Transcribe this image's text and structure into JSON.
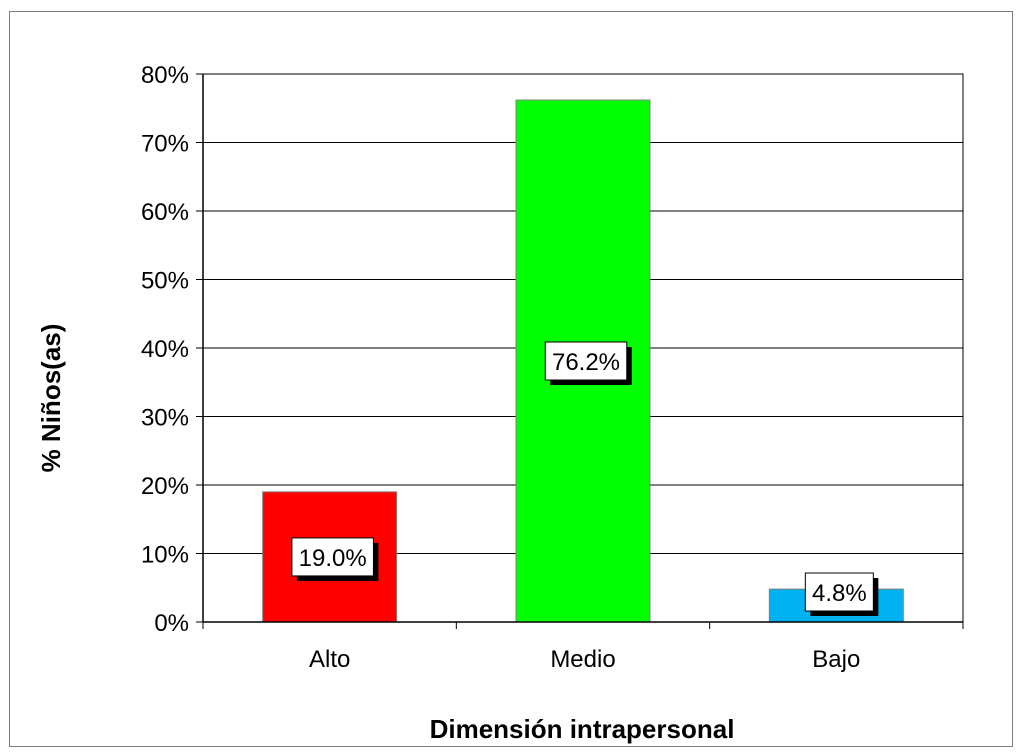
{
  "chart_data": {
    "type": "bar",
    "categories": [
      "Alto",
      "Medio",
      "Bajo"
    ],
    "values": [
      19.0,
      76.2,
      4.8
    ],
    "data_labels": [
      "19.0%",
      "76.2%",
      "4.8%"
    ],
    "bar_colors": [
      "#ff0000",
      "#00ff00",
      "#00b0f0"
    ],
    "xlabel": "Dimensión intrapersonal",
    "ylabel": "% Niños(as)",
    "ylim": [
      0,
      80
    ],
    "yticks": [
      0,
      10,
      20,
      30,
      40,
      50,
      60,
      70,
      80
    ],
    "ytick_labels": [
      "0%",
      "10%",
      "20%",
      "30%",
      "40%",
      "50%",
      "60%",
      "70%",
      "80%"
    ],
    "grid": true,
    "legend": "none"
  }
}
